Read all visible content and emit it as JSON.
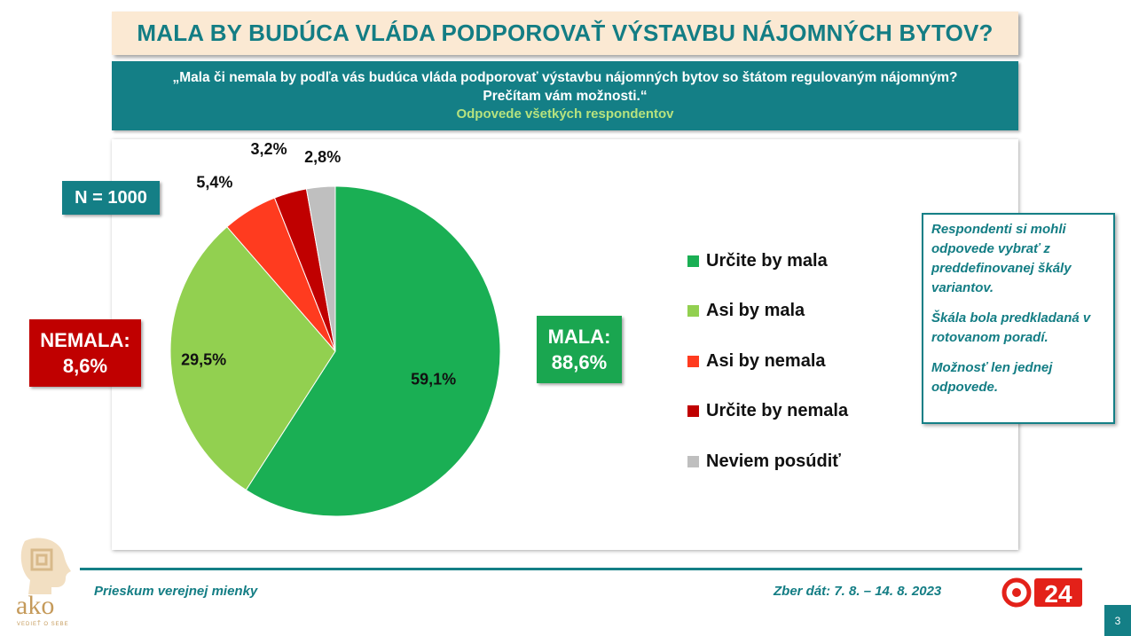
{
  "title": "MALA BY BUDÚCA VLÁDA PODPOROVAŤ VÝSTAVBU NÁJOMNÝCH BYTOV?",
  "subtitle": {
    "question": "„Mala či nemala by podľa vás budúca vláda podporovať výstavbu nájomných bytov so štátom regulovaným nájomným? Prečítam vám možnosti.“",
    "note": "Odpovede všetkých respondentov"
  },
  "n_label": "N = 1000",
  "nemala": {
    "label": "NEMALA:",
    "value": "8,6%"
  },
  "mala": {
    "label": "MALA:",
    "value": "88,6%"
  },
  "info": {
    "p1": "Respondenti si mohli odpovede vybrať z preddefinovanej škály variantov.",
    "p2": "Škála bola predkladaná v rotovanom poradí.",
    "p3": "Možnosť len jednej odpovede."
  },
  "footer": {
    "left": "Prieskum verejnej mienky",
    "right": "Zber dát: 7. 8. – 14. 8. 2023",
    "page": "3"
  },
  "logo": {
    "text": "ako",
    "tagline": "VEDIEŤ O SEBE"
  },
  "tv_logo": {
    "text": "24"
  },
  "colors": {
    "teal": "#147f86",
    "title_bg": "#fbe9d3"
  },
  "chart_data": {
    "type": "pie",
    "title": "",
    "categories": [
      "Určite by mala",
      "Asi by mala",
      "Asi by nemala",
      "Určite by nemala",
      "Neviem posúdiť"
    ],
    "values": [
      59.1,
      29.5,
      5.4,
      3.2,
      2.8
    ],
    "labels": [
      "59,1%",
      "29,5%",
      "5,4%",
      "3,2%",
      "2,8%"
    ],
    "colors": [
      "#1aaf54",
      "#92d050",
      "#ff3b1f",
      "#c00000",
      "#bfbfbf"
    ],
    "legend_position": "right"
  }
}
